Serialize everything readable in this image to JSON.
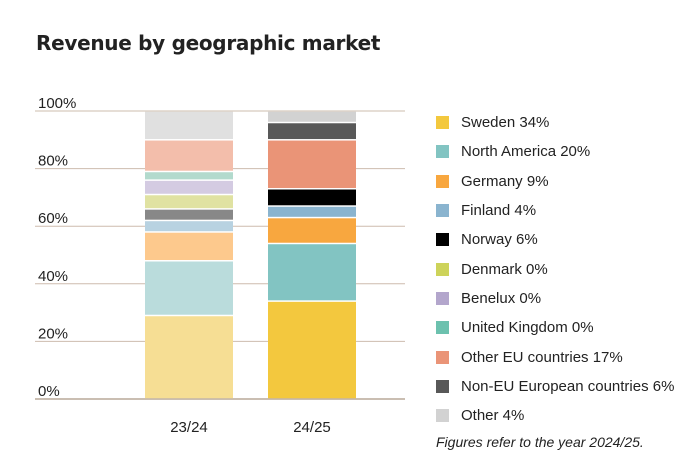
{
  "chart_data": {
    "type": "bar",
    "stacked": true,
    "title": "Revenue by geographic market",
    "categories": [
      "23/24",
      "24/25"
    ],
    "ylim": [
      0,
      100
    ],
    "yticks": [
      "0%",
      "20%",
      "40%",
      "60%",
      "80%",
      "100%"
    ],
    "grid": true,
    "legend_placement": "right",
    "series": [
      {
        "name": "Sweden",
        "values": [
          29,
          34
        ],
        "colors": [
          "#f6de94",
          "#f3c83e"
        ]
      },
      {
        "name": "North America",
        "values": [
          19,
          20
        ],
        "colors": [
          "#badcdc",
          "#82c4c2"
        ]
      },
      {
        "name": "Germany",
        "values": [
          10,
          9
        ],
        "colors": [
          "#fdc98d",
          "#f8a73f"
        ]
      },
      {
        "name": "Finland",
        "values": [
          4,
          4
        ],
        "colors": [
          "#b8d2e1",
          "#8ab4cf"
        ]
      },
      {
        "name": "Norway",
        "values": [
          4,
          6
        ],
        "colors": [
          "#888888",
          "#000000"
        ]
      },
      {
        "name": "Denmark",
        "values": [
          5,
          0
        ],
        "colors": [
          "#e0e2a2",
          "#cdd35a"
        ]
      },
      {
        "name": "Benelux",
        "values": [
          5,
          0
        ],
        "colors": [
          "#d4cbe2",
          "#b3a6cc"
        ]
      },
      {
        "name": "United Kingdom",
        "values": [
          3,
          0
        ],
        "colors": [
          "#b2dacd",
          "#6cc1ae"
        ]
      },
      {
        "name": "Other EU countries",
        "values": [
          11,
          17
        ],
        "colors": [
          "#f3beab",
          "#ea9477"
        ]
      },
      {
        "name": "Non-EU European countries",
        "values": [
          0,
          6
        ],
        "colors": [
          "#9a9a9a",
          "#585858"
        ]
      },
      {
        "name": "Other",
        "values": [
          10,
          4
        ],
        "colors": [
          "#e0e0e0",
          "#d2d2d2"
        ]
      }
    ],
    "legend": [
      "Sweden 34%",
      "North America 20%",
      "Germany 9%",
      "Finland 4%",
      "Norway 6%",
      "Denmark 0%",
      "Benelux 0%",
      "United Kingdom 0%",
      "Other EU countries 17%",
      "Non-EU European countries 6%",
      "Other 4%"
    ],
    "note": "Figures refer to the year 2024/25."
  }
}
